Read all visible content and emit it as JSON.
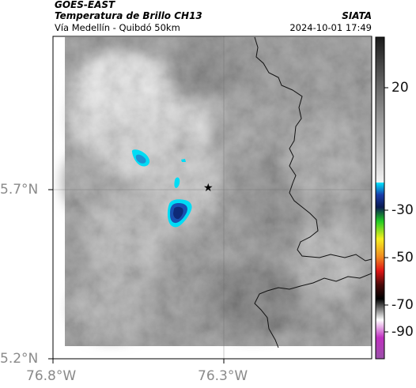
{
  "header": {
    "satellite": "GOES-EAST",
    "product": "Temperatura de Brillo CH13",
    "route": "Vía Medellín - Quibdó 50km",
    "organization": "SIATA",
    "datetime": "2024-10-01 17:49"
  },
  "axes": {
    "lat_labels": [
      "5.7°N",
      "5.2°N"
    ],
    "lon_labels": [
      "76.8°W",
      "76.3°W"
    ]
  },
  "marker": {
    "symbol": "★",
    "icon": "star-icon"
  },
  "colorbar": {
    "tick_labels": [
      "20",
      "-30",
      "-50",
      "-70",
      "-90"
    ],
    "colors": {
      "warm_top": "#1a1a1a",
      "warm_bottom": "#f2f2f2",
      "cyan": "#00e6ff",
      "blue": "#1a3caa",
      "green": "#22cc22",
      "yellow": "#f5ee20",
      "orange": "#f08c20",
      "red": "#e01515",
      "black": "#000000",
      "white": "#ffffff",
      "magenta": "#c030c0"
    }
  }
}
